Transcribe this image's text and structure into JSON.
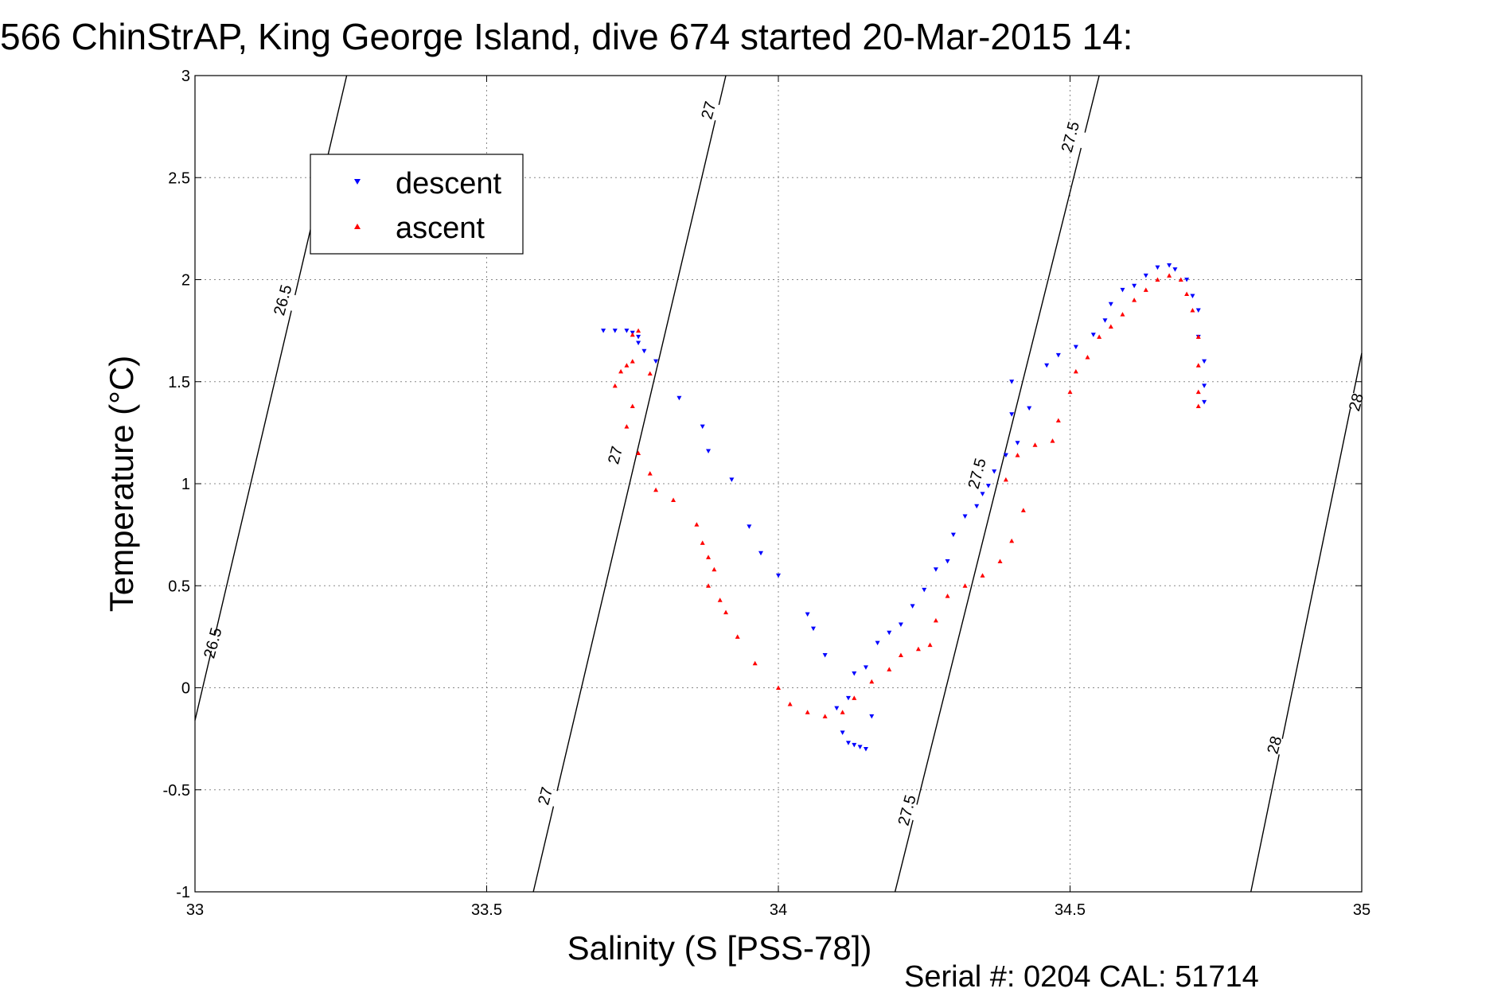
{
  "chart_data": {
    "type": "scatter",
    "title": "566 ChinStrAP, King George Island, dive 674 started 20-Mar-2015 14:",
    "xlabel": "Salinity (S [PSS-78])",
    "ylabel": "Temperature (°C)",
    "xlim": [
      33,
      35
    ],
    "ylim": [
      -1,
      3
    ],
    "x_ticks": [
      33,
      33.5,
      34,
      34.5,
      35
    ],
    "x_tick_labels": [
      "33",
      "33.5",
      "34",
      "34.5",
      "35"
    ],
    "y_ticks": [
      -1,
      -0.5,
      0,
      0.5,
      1,
      1.5,
      2,
      2.5,
      3
    ],
    "y_tick_labels": [
      "-1",
      "-0.5",
      "0",
      "0.5",
      "1",
      "1.5",
      "2",
      "2.5",
      "3"
    ],
    "grid": true,
    "legend_position": "top-left",
    "footer": "Serial #: 0204  CAL: 51714",
    "density_contours": [
      {
        "label": "26.5",
        "points": [
          [
            33.0,
            -0.16
          ],
          [
            33.26,
            3.0
          ]
        ]
      },
      {
        "label": "27",
        "points": [
          [
            33.58,
            -1.0
          ],
          [
            33.91,
            3.0
          ]
        ]
      },
      {
        "label": "27.5",
        "points": [
          [
            34.2,
            -1.0
          ],
          [
            34.55,
            3.0
          ]
        ]
      },
      {
        "label": "28",
        "points": [
          [
            34.81,
            -1.0
          ],
          [
            35.0,
            1.64
          ]
        ]
      }
    ],
    "contour_labels": [
      {
        "text": "26.5",
        "x": 33.15,
        "y": 1.9
      },
      {
        "text": "26.5",
        "x": 33.03,
        "y": 0.22
      },
      {
        "text": "27",
        "x": 33.88,
        "y": 2.83
      },
      {
        "text": "27",
        "x": 33.72,
        "y": 1.14
      },
      {
        "text": "27",
        "x": 33.6,
        "y": -0.53
      },
      {
        "text": "27.5",
        "x": 34.5,
        "y": 2.7
      },
      {
        "text": "27.5",
        "x": 34.34,
        "y": 1.05
      },
      {
        "text": "27.5",
        "x": 34.22,
        "y": -0.6
      },
      {
        "text": "28",
        "x": 34.99,
        "y": 1.4
      },
      {
        "text": "28",
        "x": 34.85,
        "y": -0.28
      }
    ],
    "series": [
      {
        "name": "descent",
        "color": "#0000ff",
        "marker": "triangle-down",
        "points": [
          [
            33.7,
            1.75
          ],
          [
            33.72,
            1.75
          ],
          [
            33.74,
            1.75
          ],
          [
            33.75,
            1.74
          ],
          [
            33.76,
            1.72
          ],
          [
            33.76,
            1.69
          ],
          [
            33.77,
            1.65
          ],
          [
            33.79,
            1.6
          ],
          [
            33.83,
            1.42
          ],
          [
            33.87,
            1.28
          ],
          [
            33.88,
            1.16
          ],
          [
            33.92,
            1.02
          ],
          [
            33.95,
            0.79
          ],
          [
            33.97,
            0.66
          ],
          [
            34.0,
            0.55
          ],
          [
            34.05,
            0.36
          ],
          [
            34.06,
            0.29
          ],
          [
            34.08,
            0.16
          ],
          [
            34.1,
            -0.1
          ],
          [
            34.11,
            -0.22
          ],
          [
            34.12,
            -0.27
          ],
          [
            34.13,
            -0.28
          ],
          [
            34.14,
            -0.29
          ],
          [
            34.15,
            -0.3
          ],
          [
            34.16,
            -0.14
          ],
          [
            34.12,
            -0.05
          ],
          [
            34.13,
            0.07
          ],
          [
            34.15,
            0.1
          ],
          [
            34.17,
            0.22
          ],
          [
            34.19,
            0.27
          ],
          [
            34.21,
            0.31
          ],
          [
            34.23,
            0.4
          ],
          [
            34.25,
            0.48
          ],
          [
            34.27,
            0.58
          ],
          [
            34.29,
            0.62
          ],
          [
            34.3,
            0.75
          ],
          [
            34.32,
            0.84
          ],
          [
            34.34,
            0.89
          ],
          [
            34.35,
            0.95
          ],
          [
            34.36,
            0.99
          ],
          [
            34.37,
            1.06
          ],
          [
            34.39,
            1.14
          ],
          [
            34.41,
            1.2
          ],
          [
            34.4,
            1.34
          ],
          [
            34.4,
            1.5
          ],
          [
            34.43,
            1.37
          ],
          [
            34.46,
            1.58
          ],
          [
            34.48,
            1.63
          ],
          [
            34.51,
            1.67
          ],
          [
            34.54,
            1.73
          ],
          [
            34.56,
            1.8
          ],
          [
            34.57,
            1.88
          ],
          [
            34.59,
            1.95
          ],
          [
            34.61,
            1.97
          ],
          [
            34.63,
            2.02
          ],
          [
            34.65,
            2.06
          ],
          [
            34.67,
            2.07
          ],
          [
            34.68,
            2.05
          ],
          [
            34.7,
            2.0
          ],
          [
            34.71,
            1.92
          ],
          [
            34.72,
            1.85
          ],
          [
            34.72,
            1.72
          ],
          [
            34.73,
            1.6
          ],
          [
            34.73,
            1.48
          ],
          [
            34.73,
            1.4
          ]
        ]
      },
      {
        "name": "ascent",
        "color": "#ff0000",
        "marker": "triangle-up",
        "points": [
          [
            33.72,
            1.48
          ],
          [
            33.73,
            1.55
          ],
          [
            33.74,
            1.58
          ],
          [
            33.75,
            1.6
          ],
          [
            33.75,
            1.73
          ],
          [
            33.76,
            1.75
          ],
          [
            33.78,
            1.54
          ],
          [
            33.75,
            1.38
          ],
          [
            33.74,
            1.28
          ],
          [
            33.76,
            1.15
          ],
          [
            33.78,
            1.05
          ],
          [
            33.79,
            0.97
          ],
          [
            33.82,
            0.92
          ],
          [
            33.86,
            0.8
          ],
          [
            33.87,
            0.71
          ],
          [
            33.88,
            0.64
          ],
          [
            33.89,
            0.58
          ],
          [
            33.88,
            0.5
          ],
          [
            33.9,
            0.43
          ],
          [
            33.91,
            0.37
          ],
          [
            33.93,
            0.25
          ],
          [
            33.96,
            0.12
          ],
          [
            34.0,
            0.0
          ],
          [
            34.02,
            -0.08
          ],
          [
            34.05,
            -0.12
          ],
          [
            34.08,
            -0.14
          ],
          [
            34.11,
            -0.12
          ],
          [
            34.13,
            -0.05
          ],
          [
            34.16,
            0.03
          ],
          [
            34.19,
            0.09
          ],
          [
            34.21,
            0.16
          ],
          [
            34.24,
            0.19
          ],
          [
            34.26,
            0.21
          ],
          [
            34.27,
            0.33
          ],
          [
            34.29,
            0.45
          ],
          [
            34.32,
            0.5
          ],
          [
            34.35,
            0.55
          ],
          [
            34.38,
            0.62
          ],
          [
            34.4,
            0.72
          ],
          [
            34.42,
            0.87
          ],
          [
            34.39,
            1.02
          ],
          [
            34.41,
            1.14
          ],
          [
            34.44,
            1.19
          ],
          [
            34.47,
            1.21
          ],
          [
            34.48,
            1.31
          ],
          [
            34.5,
            1.45
          ],
          [
            34.51,
            1.55
          ],
          [
            34.53,
            1.62
          ],
          [
            34.55,
            1.72
          ],
          [
            34.57,
            1.77
          ],
          [
            34.59,
            1.83
          ],
          [
            34.61,
            1.9
          ],
          [
            34.63,
            1.95
          ],
          [
            34.65,
            2.0
          ],
          [
            34.67,
            2.02
          ],
          [
            34.69,
            2.0
          ],
          [
            34.7,
            1.93
          ],
          [
            34.71,
            1.85
          ],
          [
            34.72,
            1.72
          ],
          [
            34.72,
            1.58
          ],
          [
            34.72,
            1.45
          ],
          [
            34.72,
            1.38
          ]
        ]
      }
    ]
  }
}
